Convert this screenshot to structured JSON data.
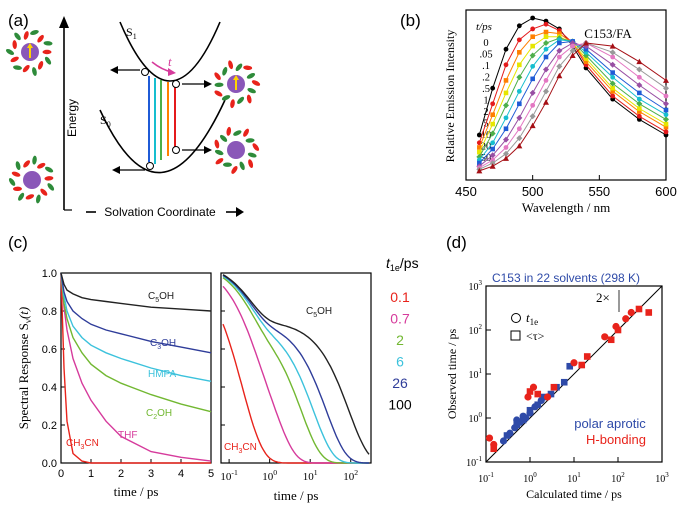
{
  "panel_a": {
    "label": "(a)",
    "s1": "S",
    "s1_sub": "1",
    "s0": "S",
    "s0_sub": "0",
    "t_symbol": "t",
    "y_axis": "Energy",
    "x_axis": "Solvation Coordinate"
  },
  "panel_b": {
    "label": "(b)",
    "header": "t/ps",
    "sample": "C153/FA",
    "colors": [
      "#000000",
      "#e41a1c",
      "#ff7f00",
      "#e6e600",
      "#4daf4a",
      "#17becf",
      "#1f5bd6",
      "#984ea3",
      "#e377c2",
      "#999999",
      "#a50f15"
    ],
    "chart_data": {
      "type": "line",
      "title": "",
      "xlabel": "Wavelength / nm",
      "ylabel": "Relative Emission Intensity",
      "xlim": [
        450,
        600
      ],
      "x_ticks": [
        "450",
        "500",
        "550",
        "600"
      ],
      "x": [
        460,
        470,
        480,
        490,
        500,
        510,
        520,
        530,
        540,
        560,
        580,
        600
      ],
      "series": [
        {
          "name": "0",
          "values": [
            0.25,
            0.55,
            0.8,
            0.95,
            1.0,
            0.98,
            0.93,
            0.82,
            0.68,
            0.48,
            0.35,
            0.25
          ]
        },
        {
          "name": ".05",
          "values": [
            0.2,
            0.45,
            0.7,
            0.86,
            0.93,
            0.96,
            0.92,
            0.84,
            0.7,
            0.5,
            0.37,
            0.27
          ]
        },
        {
          "name": ".1",
          "values": [
            0.17,
            0.38,
            0.6,
            0.78,
            0.88,
            0.91,
            0.9,
            0.84,
            0.72,
            0.53,
            0.4,
            0.3
          ]
        },
        {
          "name": ".2",
          "values": [
            0.14,
            0.32,
            0.52,
            0.7,
            0.82,
            0.88,
            0.88,
            0.84,
            0.74,
            0.55,
            0.42,
            0.32
          ]
        },
        {
          "name": ".5",
          "values": [
            0.11,
            0.26,
            0.44,
            0.62,
            0.76,
            0.84,
            0.87,
            0.85,
            0.76,
            0.58,
            0.45,
            0.35
          ]
        },
        {
          "name": "1",
          "values": [
            0.09,
            0.2,
            0.36,
            0.53,
            0.69,
            0.8,
            0.86,
            0.85,
            0.78,
            0.62,
            0.48,
            0.38
          ]
        },
        {
          "name": "2",
          "values": [
            0.07,
            0.16,
            0.29,
            0.45,
            0.61,
            0.75,
            0.84,
            0.85,
            0.8,
            0.65,
            0.52,
            0.41
          ]
        },
        {
          "name": "5",
          "values": [
            0.05,
            0.12,
            0.22,
            0.36,
            0.52,
            0.67,
            0.79,
            0.84,
            0.82,
            0.7,
            0.57,
            0.45
          ]
        },
        {
          "name": "10",
          "values": [
            0.04,
            0.09,
            0.17,
            0.29,
            0.44,
            0.6,
            0.75,
            0.82,
            0.84,
            0.75,
            0.62,
            0.5
          ]
        },
        {
          "name": "20",
          "values": [
            0.03,
            0.07,
            0.13,
            0.23,
            0.37,
            0.53,
            0.69,
            0.79,
            0.84,
            0.78,
            0.67,
            0.55
          ]
        },
        {
          "name": "50",
          "values": [
            0.02,
            0.05,
            0.1,
            0.18,
            0.31,
            0.46,
            0.63,
            0.76,
            0.84,
            0.82,
            0.72,
            0.6
          ]
        }
      ]
    }
  },
  "panel_c": {
    "label": "(c)",
    "ylabel": "Spectral Response S",
    "ylabel_sub": "ν",
    "ylabel_arg": "(t)",
    "xlabel": "time / ps",
    "y_ticks": [
      "0.0",
      "0.2",
      "0.4",
      "0.6",
      "0.8",
      "1.0"
    ],
    "x_ticks_left": [
      "0",
      "1",
      "2",
      "3",
      "4",
      "5"
    ],
    "x_ticks_right": [
      {
        "base": "10",
        "exp": "-1"
      },
      {
        "base": "10",
        "exp": "0"
      },
      {
        "base": "10",
        "exp": "1"
      },
      {
        "base": "10",
        "exp": "2"
      }
    ],
    "legend_title": "t",
    "legend_title_sub": "1e",
    "legend_title_unit": "/ps",
    "legend": [
      {
        "value": "0.1",
        "color": "#e8231b"
      },
      {
        "value": "0.7",
        "color": "#d63b9c"
      },
      {
        "value": "2",
        "color": "#72b832"
      },
      {
        "value": "6",
        "color": "#3cc2dc"
      },
      {
        "value": "26",
        "color": "#2f3d9a"
      },
      {
        "value": "100",
        "color": "#000000"
      }
    ],
    "solvent_labels": [
      {
        "text": "C",
        "sub": "5",
        "post": "OH",
        "color": "#222222"
      },
      {
        "text": "C",
        "sub": "3",
        "post": "OH",
        "color": "#2f3d9a"
      },
      {
        "text": "HMPA",
        "sub": "",
        "post": "",
        "color": "#3cc2dc"
      },
      {
        "text": "C",
        "sub": "2",
        "post": "OH",
        "color": "#72b832"
      },
      {
        "text": "THF",
        "sub": "",
        "post": "",
        "color": "#d63b9c"
      },
      {
        "text": "CH",
        "sub": "3",
        "post": "CN",
        "color": "#e8231b"
      }
    ],
    "right_labels": [
      {
        "text": "C",
        "sub": "5",
        "post": "OH",
        "color": "#222222"
      },
      {
        "text": "CH",
        "sub": "3",
        "post": "CN",
        "color": "#e8231b"
      }
    ],
    "chart_data": {
      "type": "line",
      "xlabel": "time / ps",
      "ylabel": "Spectral Response S_ν(t)",
      "ylim": [
        0,
        1
      ],
      "left_xlim": [
        0,
        5
      ],
      "right_xlim_log10": [
        -1.2,
        2.5
      ],
      "t": [
        0,
        0.1,
        0.2,
        0.4,
        0.7,
        1,
        1.5,
        2,
        3,
        4,
        5
      ],
      "series": [
        {
          "name": "CH3CN",
          "values": [
            1.0,
            0.5,
            0.22,
            0.05,
            0.01,
            0.0,
            0.0,
            0.0,
            0.0,
            0.0,
            0.0
          ]
        },
        {
          "name": "THF",
          "values": [
            1.0,
            0.82,
            0.7,
            0.55,
            0.42,
            0.33,
            0.22,
            0.14,
            0.06,
            0.03,
            0.01
          ]
        },
        {
          "name": "C2OH",
          "values": [
            1.0,
            0.84,
            0.76,
            0.66,
            0.58,
            0.52,
            0.46,
            0.42,
            0.36,
            0.31,
            0.27
          ]
        },
        {
          "name": "HMPA",
          "values": [
            1.0,
            0.88,
            0.8,
            0.72,
            0.66,
            0.62,
            0.58,
            0.55,
            0.5,
            0.46,
            0.43
          ]
        },
        {
          "name": "C3OH",
          "values": [
            1.0,
            0.9,
            0.85,
            0.8,
            0.76,
            0.73,
            0.7,
            0.68,
            0.64,
            0.61,
            0.58
          ]
        },
        {
          "name": "C5OH",
          "values": [
            1.0,
            0.94,
            0.91,
            0.89,
            0.87,
            0.86,
            0.85,
            0.84,
            0.82,
            0.81,
            0.8
          ]
        }
      ]
    }
  },
  "panel_d": {
    "label": "(d)",
    "title": "C153 in 22 solvents (298 K)",
    "xlabel": "Calculated  time / ps",
    "ylabel": "Observed  time / ps",
    "two_x": "2×",
    "legend_circle": "t",
    "legend_circle_sub": "1e",
    "legend_square": "<τ>",
    "polar_label": "polar aprotic",
    "hbond_label": "H-bonding",
    "ticks": [
      {
        "base": "10",
        "exp": "-1"
      },
      {
        "base": "10",
        "exp": "0"
      },
      {
        "base": "10",
        "exp": "1"
      },
      {
        "base": "10",
        "exp": "2"
      },
      {
        "base": "10",
        "exp": "3"
      }
    ],
    "chart_data": {
      "type": "scatter",
      "xlabel": "Calculated time / ps",
      "ylabel": "Observed time / ps",
      "scale": "log",
      "xlim": [
        0.1,
        1000
      ],
      "ylim": [
        0.1,
        1000
      ],
      "series": [
        {
          "name": "polar aprotic t1e",
          "marker": "circle",
          "color": "#2e4aa8",
          "points": [
            [
              0.25,
              0.3
            ],
            [
              0.35,
              0.45
            ],
            [
              0.45,
              0.6
            ],
            [
              0.6,
              0.8
            ],
            [
              0.8,
              1.0
            ],
            [
              1.0,
              1.3
            ],
            [
              1.3,
              1.8
            ],
            [
              1.8,
              2.5
            ],
            [
              0.5,
              0.9
            ],
            [
              0.7,
              1.1
            ]
          ]
        },
        {
          "name": "polar aprotic <τ>",
          "marker": "square",
          "color": "#2e4aa8",
          "points": [
            [
              0.3,
              0.4
            ],
            [
              0.5,
              0.7
            ],
            [
              0.7,
              0.9
            ],
            [
              1.0,
              1.5
            ],
            [
              1.5,
              2.0
            ],
            [
              2.0,
              3.0
            ],
            [
              3.0,
              3.5
            ],
            [
              4.0,
              5.0
            ],
            [
              6.0,
              6.5
            ],
            [
              8.0,
              15.0
            ]
          ]
        },
        {
          "name": "H-bonding t1e",
          "marker": "circle",
          "color": "#e8231b",
          "points": [
            [
              0.12,
              0.35
            ],
            [
              0.9,
              3.0
            ],
            [
              1.2,
              5.0
            ],
            [
              2.5,
              3.0
            ],
            [
              10.0,
              18.0
            ],
            [
              50.0,
              70.0
            ],
            [
              90.0,
              120.0
            ],
            [
              150.0,
              180.0
            ],
            [
              200.0,
              250.0
            ],
            [
              0.15,
              0.25
            ]
          ]
        },
        {
          "name": "H-bonding <τ>",
          "marker": "square",
          "color": "#e8231b",
          "points": [
            [
              0.15,
              0.2
            ],
            [
              1.5,
              3.5
            ],
            [
              3.5,
              5.0
            ],
            [
              15.0,
              16.0
            ],
            [
              20.0,
              25.0
            ],
            [
              70.0,
              60.0
            ],
            [
              100.0,
              100.0
            ],
            [
              300.0,
              300.0
            ],
            [
              500.0,
              250.0
            ],
            [
              1.0,
              4.0
            ]
          ]
        }
      ]
    }
  }
}
